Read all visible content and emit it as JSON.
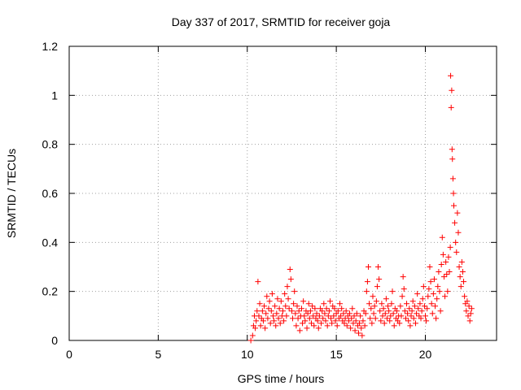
{
  "chart_data": {
    "type": "scatter",
    "title": "Day 337 of 2017, SRMTID for receiver goja",
    "xlabel": "GPS time / hours",
    "ylabel": "SRMTID / TECUs",
    "xlim": [
      0,
      24
    ],
    "ylim": [
      0,
      1.2
    ],
    "xticks": [
      0,
      5,
      10,
      15,
      20
    ],
    "xtick_labels": [
      "0",
      "5",
      "10",
      "15",
      "20"
    ],
    "yticks": [
      0,
      0.2,
      0.4,
      0.6,
      0.8,
      1.0,
      1.2
    ],
    "ytick_labels": [
      "0",
      "0.2",
      "0.4",
      "0.6",
      "0.8",
      "1",
      "1.2"
    ],
    "grid": true,
    "marker": "+",
    "color": "#ff0000",
    "series": [
      {
        "name": "SRMTID",
        "x": [
          10.2,
          10.3,
          10.35,
          10.4,
          10.45,
          10.5,
          10.55,
          10.6,
          10.65,
          10.7,
          10.75,
          10.8,
          10.85,
          10.9,
          10.95,
          11.0,
          11.05,
          11.1,
          11.15,
          11.2,
          11.25,
          11.3,
          11.35,
          11.4,
          11.45,
          11.5,
          11.55,
          11.6,
          11.65,
          11.7,
          11.75,
          11.8,
          11.85,
          11.9,
          11.95,
          12.0,
          12.05,
          12.1,
          12.15,
          12.2,
          12.25,
          12.3,
          12.35,
          12.4,
          12.45,
          12.5,
          12.55,
          12.6,
          12.65,
          12.7,
          12.75,
          12.8,
          12.85,
          12.9,
          12.95,
          13.0,
          13.05,
          13.1,
          13.15,
          13.2,
          13.25,
          13.3,
          13.35,
          13.4,
          13.45,
          13.5,
          13.55,
          13.6,
          13.65,
          13.7,
          13.75,
          13.8,
          13.85,
          13.9,
          13.95,
          14.0,
          14.05,
          14.1,
          14.15,
          14.2,
          14.25,
          14.3,
          14.35,
          14.4,
          14.45,
          14.5,
          14.55,
          14.6,
          14.65,
          14.7,
          14.75,
          14.8,
          14.85,
          14.9,
          14.95,
          15.0,
          15.05,
          15.1,
          15.15,
          15.2,
          15.25,
          15.3,
          15.35,
          15.4,
          15.45,
          15.5,
          15.55,
          15.6,
          15.65,
          15.7,
          15.75,
          15.8,
          15.85,
          15.9,
          15.95,
          16.0,
          16.05,
          16.1,
          16.15,
          16.2,
          16.25,
          16.3,
          16.35,
          16.4,
          16.45,
          16.5,
          16.55,
          16.6,
          16.65,
          16.7,
          16.75,
          16.8,
          16.85,
          16.9,
          16.95,
          17.0,
          17.05,
          17.1,
          17.15,
          17.2,
          17.25,
          17.3,
          17.35,
          17.4,
          17.45,
          17.5,
          17.55,
          17.6,
          17.65,
          17.7,
          17.75,
          17.8,
          17.85,
          17.9,
          17.95,
          18.0,
          18.05,
          18.1,
          18.15,
          18.2,
          18.25,
          18.3,
          18.35,
          18.4,
          18.45,
          18.5,
          18.55,
          18.6,
          18.65,
          18.7,
          18.75,
          18.8,
          18.85,
          18.9,
          18.95,
          19.0,
          19.05,
          19.1,
          19.15,
          19.2,
          19.25,
          19.3,
          19.35,
          19.4,
          19.45,
          19.5,
          19.55,
          19.6,
          19.65,
          19.7,
          19.75,
          19.8,
          19.85,
          19.9,
          19.95,
          20.0,
          20.05,
          20.1,
          20.15,
          20.2,
          20.25,
          20.3,
          20.35,
          20.4,
          20.45,
          20.5,
          20.55,
          20.6,
          20.65,
          20.7,
          20.75,
          20.8,
          20.85,
          20.9,
          20.95,
          21.0,
          21.05,
          21.1,
          21.15,
          21.2,
          21.25,
          21.3,
          21.35,
          21.4,
          21.42,
          21.45,
          21.48,
          21.5,
          21.52,
          21.55,
          21.58,
          21.6,
          21.65,
          21.7,
          21.75,
          21.8,
          21.85,
          21.9,
          21.95,
          22.0,
          22.05,
          22.1,
          22.15,
          22.2,
          22.25,
          22.3,
          22.35,
          22.4,
          22.45,
          22.5,
          22.55,
          22.6
        ],
        "y": [
          0.0,
          0.02,
          0.06,
          0.1,
          0.05,
          0.08,
          0.12,
          0.24,
          0.1,
          0.15,
          0.06,
          0.09,
          0.12,
          0.08,
          0.14,
          0.05,
          0.11,
          0.18,
          0.09,
          0.13,
          0.16,
          0.07,
          0.12,
          0.19,
          0.1,
          0.08,
          0.14,
          0.06,
          0.11,
          0.17,
          0.09,
          0.13,
          0.07,
          0.16,
          0.1,
          0.12,
          0.08,
          0.19,
          0.14,
          0.1,
          0.22,
          0.17,
          0.13,
          0.29,
          0.25,
          0.12,
          0.09,
          0.15,
          0.2,
          0.11,
          0.06,
          0.14,
          0.09,
          0.12,
          0.04,
          0.1,
          0.13,
          0.07,
          0.16,
          0.1,
          0.08,
          0.12,
          0.05,
          0.11,
          0.15,
          0.09,
          0.12,
          0.07,
          0.14,
          0.1,
          0.06,
          0.13,
          0.09,
          0.11,
          0.08,
          0.05,
          0.1,
          0.13,
          0.07,
          0.12,
          0.09,
          0.15,
          0.11,
          0.08,
          0.13,
          0.06,
          0.1,
          0.12,
          0.16,
          0.09,
          0.07,
          0.14,
          0.1,
          0.13,
          0.08,
          0.11,
          0.06,
          0.12,
          0.09,
          0.15,
          0.1,
          0.13,
          0.08,
          0.11,
          0.07,
          0.09,
          0.12,
          0.06,
          0.1,
          0.08,
          0.11,
          0.05,
          0.09,
          0.13,
          0.07,
          0.1,
          0.04,
          0.08,
          0.11,
          0.06,
          0.03,
          0.07,
          0.1,
          0.05,
          0.02,
          0.08,
          0.12,
          0.06,
          0.11,
          0.2,
          0.24,
          0.3,
          0.15,
          0.09,
          0.13,
          0.07,
          0.18,
          0.11,
          0.14,
          0.09,
          0.16,
          0.22,
          0.3,
          0.25,
          0.12,
          0.08,
          0.15,
          0.1,
          0.13,
          0.07,
          0.11,
          0.17,
          0.09,
          0.14,
          0.12,
          0.08,
          0.1,
          0.15,
          0.2,
          0.11,
          0.06,
          0.13,
          0.09,
          0.12,
          0.08,
          0.1,
          0.07,
          0.14,
          0.1,
          0.18,
          0.26,
          0.21,
          0.12,
          0.09,
          0.15,
          0.11,
          0.08,
          0.13,
          0.06,
          0.1,
          0.12,
          0.16,
          0.09,
          0.14,
          0.07,
          0.11,
          0.19,
          0.13,
          0.1,
          0.15,
          0.09,
          0.12,
          0.17,
          0.22,
          0.14,
          0.1,
          0.08,
          0.13,
          0.18,
          0.21,
          0.3,
          0.24,
          0.15,
          0.11,
          0.19,
          0.25,
          0.14,
          0.09,
          0.17,
          0.22,
          0.28,
          0.2,
          0.12,
          0.31,
          0.42,
          0.35,
          0.26,
          0.18,
          0.32,
          0.27,
          0.2,
          0.34,
          0.28,
          0.38,
          1.08,
          0.95,
          1.02,
          0.78,
          0.74,
          0.66,
          0.6,
          0.55,
          0.48,
          0.4,
          0.36,
          0.52,
          0.44,
          0.3,
          0.26,
          0.22,
          0.32,
          0.28,
          0.24,
          0.18,
          0.15,
          0.12,
          0.16,
          0.1,
          0.14,
          0.08,
          0.11,
          0.13
        ]
      }
    ]
  }
}
